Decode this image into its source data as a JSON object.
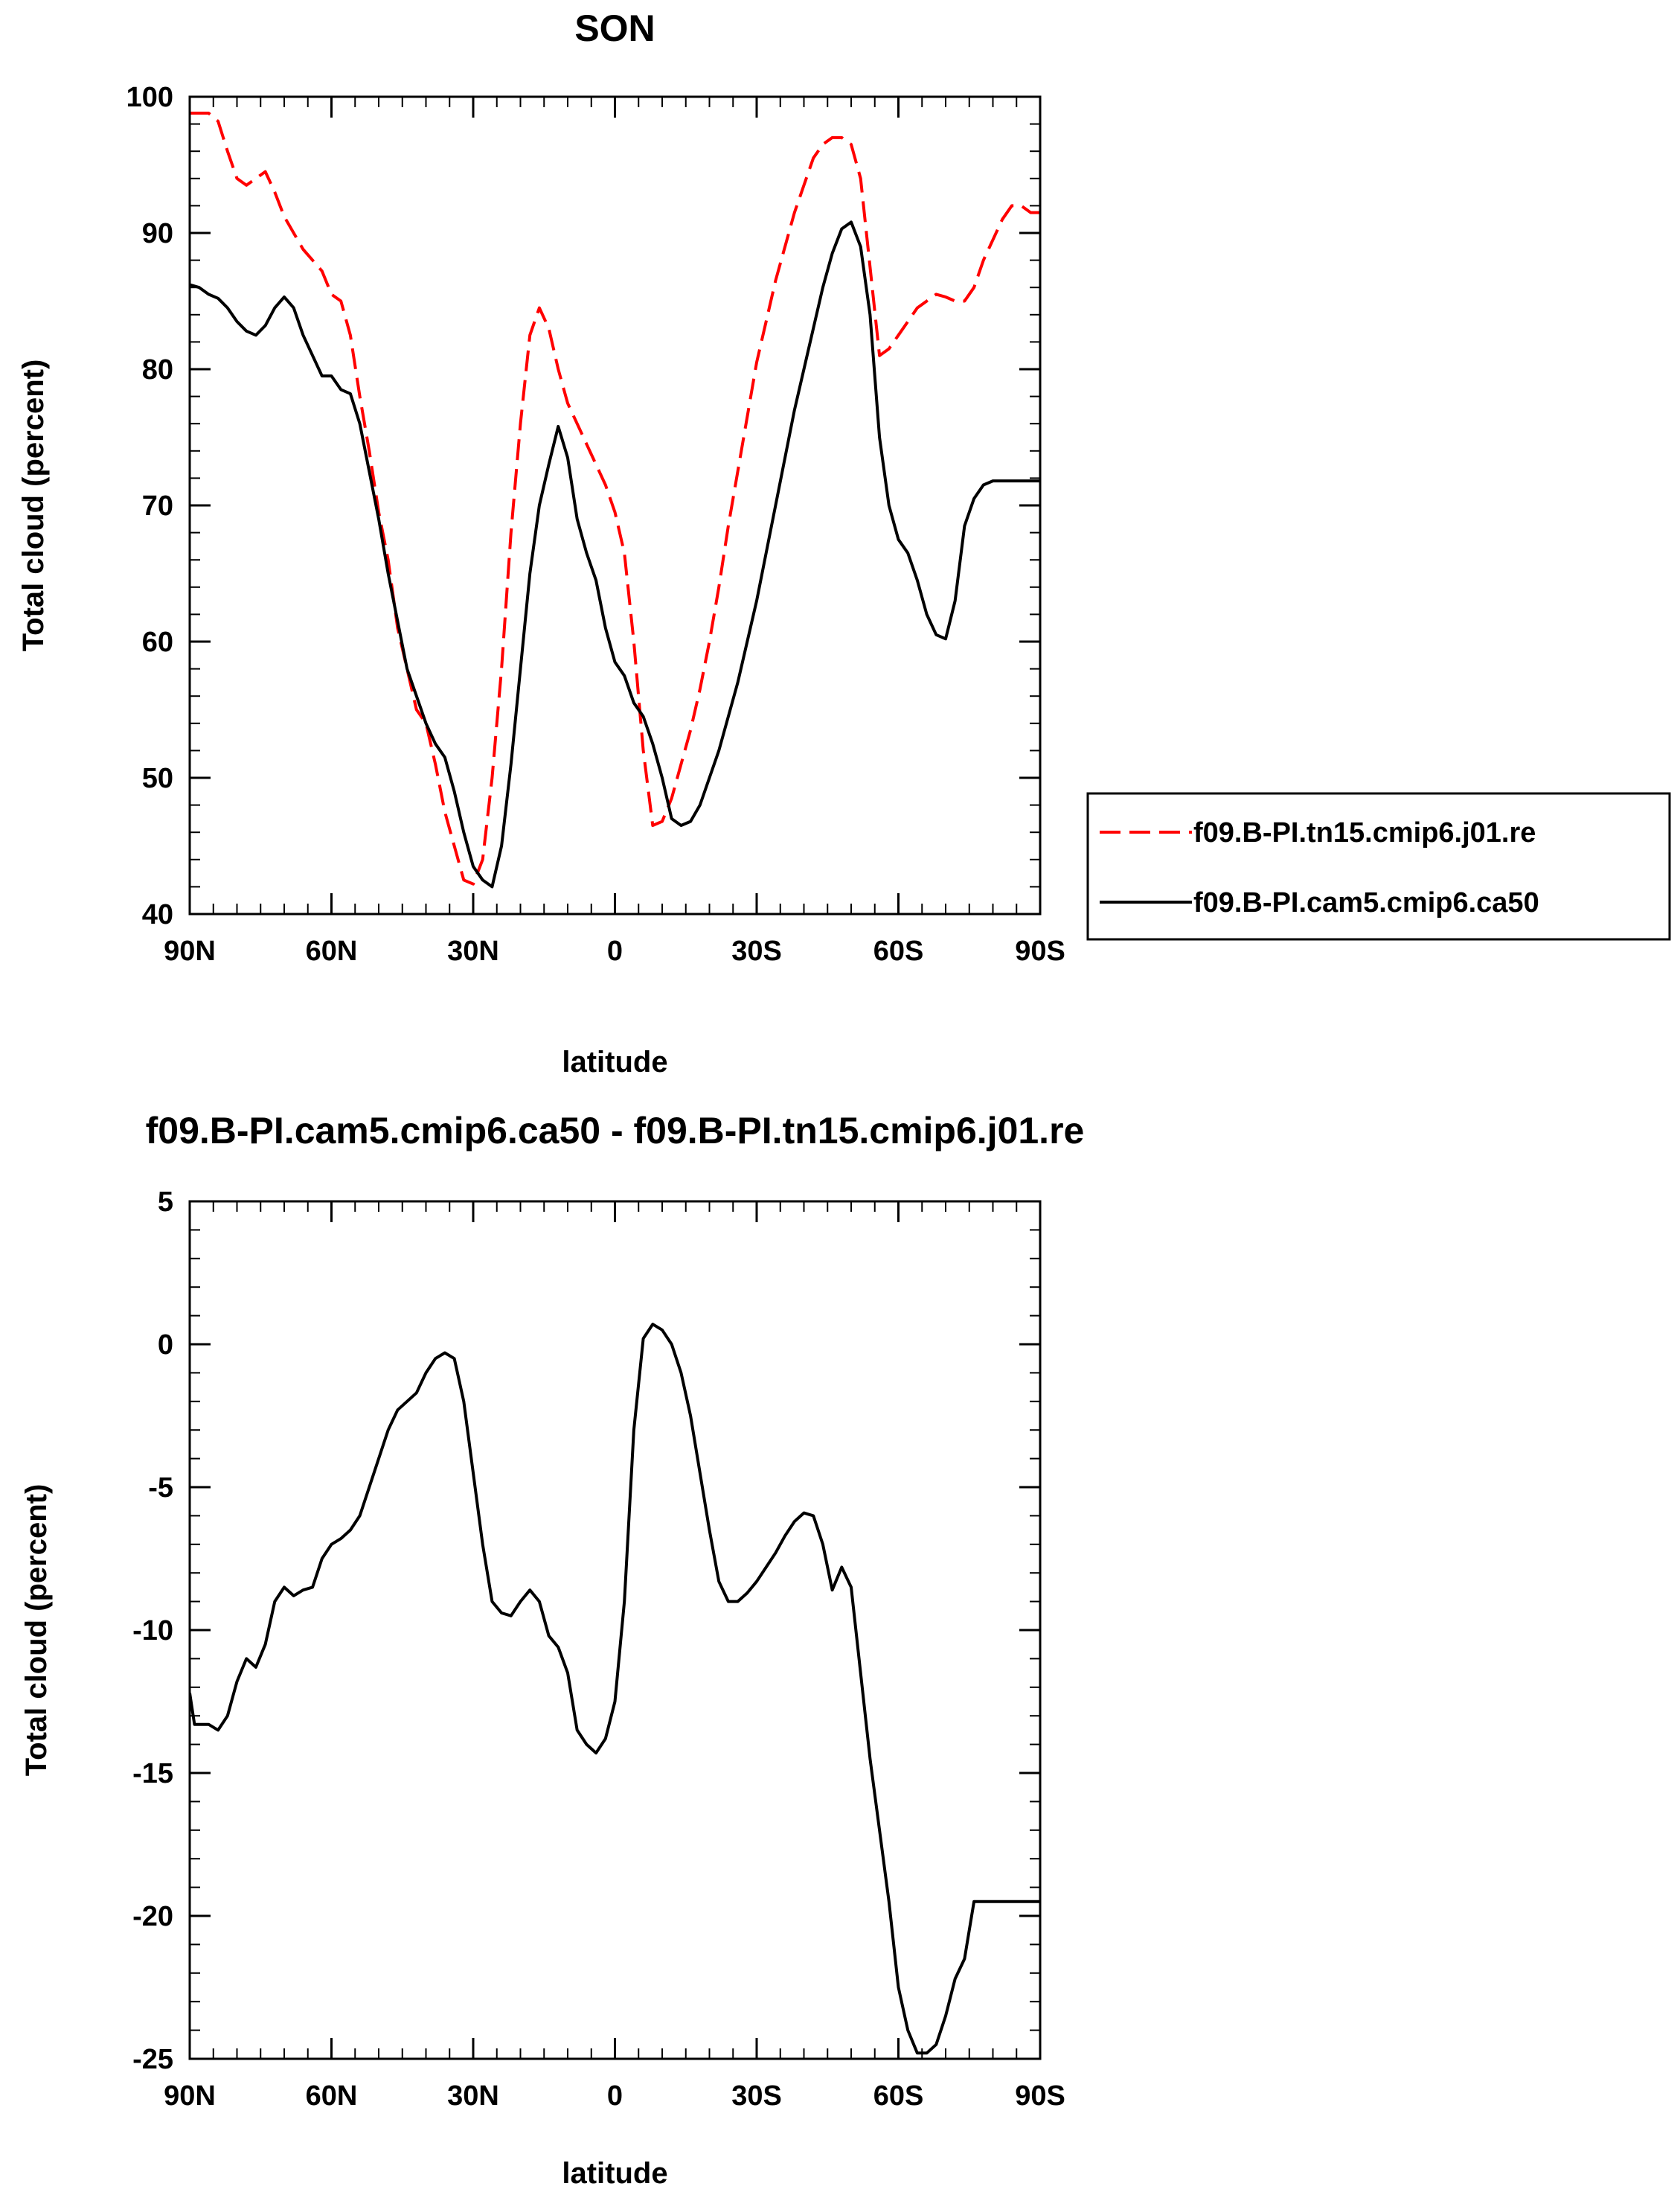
{
  "chart_data": [
    {
      "type": "line",
      "title": "SON",
      "xlabel": "latitude",
      "ylabel": "Total cloud (percent)",
      "xlim": [
        90,
        -90
      ],
      "ylim": [
        40,
        100
      ],
      "x_ticks": [
        90,
        60,
        30,
        0,
        -30,
        -60,
        -90
      ],
      "x_tick_labels": [
        "90N",
        "60N",
        "30N",
        "0",
        "30S",
        "60S",
        "90S"
      ],
      "y_ticks": [
        40,
        50,
        60,
        70,
        80,
        90,
        100
      ],
      "y_tick_labels": [
        "40",
        "50",
        "60",
        "70",
        "80",
        "90",
        "100"
      ],
      "legend_position": "right",
      "series": [
        {
          "name": "f09.B-PI.tn15.cmip6.j01.re",
          "color": "#ff0000",
          "style": "dashed",
          "x": [
            90,
            86,
            84,
            82,
            80,
            78,
            76,
            74,
            72,
            70,
            68,
            66,
            64,
            62,
            60,
            58,
            56,
            54,
            52,
            50,
            48,
            46,
            44,
            42,
            40,
            38,
            36,
            34,
            32,
            30,
            28,
            26,
            24,
            22,
            20,
            18,
            16,
            14,
            12,
            10,
            8,
            6,
            4,
            2,
            0,
            -2,
            -4,
            -6,
            -8,
            -10,
            -12,
            -14,
            -16,
            -18,
            -20,
            -22,
            -24,
            -26,
            -28,
            -30,
            -32,
            -34,
            -36,
            -38,
            -40,
            -42,
            -44,
            -46,
            -48,
            -50,
            -52,
            -54,
            -56,
            -58,
            -60,
            -62,
            -64,
            -66,
            -68,
            -70,
            -72,
            -74,
            -76,
            -78,
            -80,
            -82,
            -84,
            -86,
            -88,
            -90
          ],
          "y": [
            98.8,
            98.8,
            98.2,
            96,
            94,
            93.5,
            94,
            94.5,
            93,
            91.2,
            90,
            88.8,
            88,
            87.2,
            85.5,
            85,
            82.5,
            78,
            74,
            69.5,
            66,
            61,
            58,
            55,
            54,
            51,
            47.5,
            45,
            42.5,
            42.2,
            44,
            50,
            58,
            68,
            76,
            82.5,
            84.5,
            83,
            80,
            77.5,
            76,
            74.5,
            73,
            71.5,
            69.5,
            66.5,
            60,
            52,
            46.5,
            46.8,
            48.5,
            51,
            53.5,
            56.5,
            60,
            64,
            68.5,
            72.5,
            76.5,
            80.5,
            83.5,
            86.5,
            89,
            91.5,
            93.5,
            95.5,
            96.5,
            97,
            97,
            96.5,
            94,
            87.5,
            81,
            81.5,
            82.5,
            83.5,
            84.5,
            85,
            85.5,
            85.3,
            85,
            85,
            86,
            88,
            89.5,
            91,
            92,
            92,
            91.5,
            91.5
          ]
        },
        {
          "name": "f09.B-PI.cam5.cmip6.ca50",
          "color": "#000000",
          "style": "solid",
          "x": [
            90,
            88,
            86,
            84,
            82,
            80,
            78,
            76,
            74,
            72,
            70,
            68,
            66,
            64,
            62,
            60,
            58,
            56,
            54,
            52,
            50,
            48,
            46,
            44,
            42,
            40,
            38,
            36,
            34,
            32,
            30,
            28,
            26,
            24,
            22,
            20,
            18,
            16,
            14,
            12,
            10,
            8,
            6,
            4,
            2,
            0,
            -2,
            -4,
            -6,
            -8,
            -10,
            -12,
            -14,
            -16,
            -18,
            -20,
            -22,
            -24,
            -26,
            -28,
            -30,
            -32,
            -34,
            -36,
            -38,
            -40,
            -42,
            -44,
            -46,
            -48,
            -50,
            -52,
            -54,
            -56,
            -58,
            -60,
            -62,
            -64,
            -66,
            -68,
            -70,
            -72,
            -74,
            -76,
            -78,
            -80,
            -82,
            -84,
            -86,
            -88,
            -90
          ],
          "y": [
            86.2,
            86,
            85.5,
            85.2,
            84.5,
            83.5,
            82.8,
            82.5,
            83.2,
            84.5,
            85.3,
            84.5,
            82.5,
            81,
            79.5,
            79.5,
            78.5,
            78.2,
            76,
            72.5,
            69,
            65,
            61.5,
            58,
            56,
            54,
            52.5,
            51.5,
            49,
            46,
            43.5,
            42.5,
            42,
            45,
            51,
            58,
            65,
            70,
            73,
            75.8,
            73.5,
            69,
            66.5,
            64.5,
            61,
            58.5,
            57.5,
            55.5,
            54.5,
            52.5,
            50,
            47,
            46.5,
            46.8,
            48,
            50,
            52,
            54.5,
            57,
            60,
            63,
            66.5,
            70,
            73.5,
            77,
            80,
            83,
            86,
            88.5,
            90.3,
            90.8,
            89,
            84,
            75,
            70,
            67.5,
            66.5,
            64.5,
            62,
            60.5,
            60.2,
            63,
            68.5,
            70.5,
            71.5,
            71.8,
            71.8,
            71.8,
            71.8,
            71.8,
            71.8
          ]
        }
      ]
    },
    {
      "type": "line",
      "title": "f09.B-PI.cam5.cmip6.ca50 - f09.B-PI.tn15.cmip6.j01.re",
      "xlabel": "latitude",
      "ylabel": "Total cloud (percent)",
      "xlim": [
        90,
        -90
      ],
      "ylim": [
        -25,
        5
      ],
      "x_ticks": [
        90,
        60,
        30,
        0,
        -30,
        -60,
        -90
      ],
      "x_tick_labels": [
        "90N",
        "60N",
        "30N",
        "0",
        "30S",
        "60S",
        "90S"
      ],
      "y_ticks": [
        -25,
        -20,
        -15,
        -10,
        -5,
        0,
        5
      ],
      "y_tick_labels": [
        "-25",
        "-20",
        "-15",
        "-10",
        "-5",
        "0",
        "5"
      ],
      "series": [
        {
          "color": "#000000",
          "style": "solid",
          "x": [
            90,
            89,
            88,
            86,
            84,
            82,
            80,
            78,
            76,
            74,
            72,
            70,
            68,
            66,
            64,
            62,
            60,
            58,
            56,
            54,
            52,
            50,
            48,
            46,
            44,
            42,
            40,
            38,
            36,
            34,
            32,
            30,
            28,
            26,
            24,
            22,
            20,
            18,
            16,
            14,
            12,
            10,
            8,
            6,
            4,
            2,
            0,
            -2,
            -4,
            -6,
            -8,
            -10,
            -12,
            -14,
            -16,
            -18,
            -20,
            -22,
            -24,
            -26,
            -28,
            -30,
            -32,
            -34,
            -36,
            -38,
            -40,
            -42,
            -44,
            -46,
            -48,
            -50,
            -52,
            -54,
            -56,
            -58,
            -60,
            -62,
            -64,
            -66,
            -68,
            -70,
            -72,
            -74,
            -76,
            -78,
            -80,
            -82,
            -84,
            -86,
            -88,
            -90
          ],
          "y": [
            -12.2,
            -13.3,
            -13.3,
            -13.3,
            -13.5,
            -13,
            -11.8,
            -11,
            -11.3,
            -10.5,
            -9,
            -8.5,
            -8.8,
            -8.6,
            -8.5,
            -7.5,
            -7.0,
            -6.8,
            -6.5,
            -6.0,
            -5.0,
            -4.0,
            -3.0,
            -2.3,
            -2.0,
            -1.7,
            -1.0,
            -0.5,
            -0.3,
            -0.5,
            -2.0,
            -4.5,
            -7.0,
            -9.0,
            -9.4,
            -9.5,
            -9.0,
            -8.6,
            -9.0,
            -10.2,
            -10.6,
            -11.5,
            -13.5,
            -14.0,
            -14.3,
            -13.8,
            -12.5,
            -9.0,
            -3.0,
            0.2,
            0.7,
            0.5,
            0.0,
            -1.0,
            -2.5,
            -4.5,
            -6.5,
            -8.3,
            -9.0,
            -9.0,
            -8.7,
            -8.3,
            -7.8,
            -7.3,
            -6.7,
            -6.2,
            -5.9,
            -6.0,
            -7.0,
            -8.6,
            -7.8,
            -8.5,
            -11.5,
            -14.5,
            -17.0,
            -19.5,
            -22.5,
            -24.0,
            -24.8,
            -24.8,
            -24.5,
            -23.5,
            -22.2,
            -21.5,
            -19.5,
            -19.5,
            -19.5,
            -19.5,
            -19.5,
            -19.5,
            -19.5,
            -19.5
          ]
        }
      ]
    }
  ]
}
